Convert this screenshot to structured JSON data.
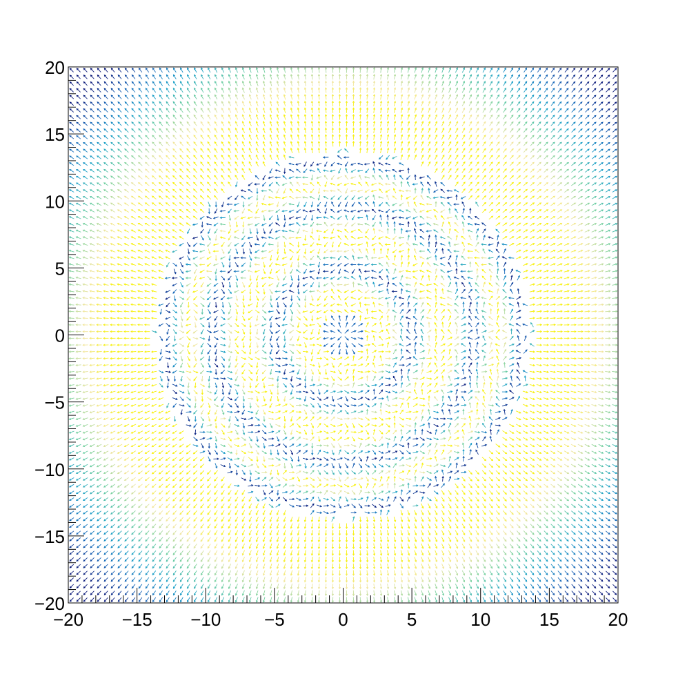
{
  "chart_data": {
    "type": "vector-field",
    "title": "",
    "xlabel": "",
    "ylabel": "",
    "xlim": [
      -20,
      20
    ],
    "ylim": [
      -20,
      20
    ],
    "x_ticks": [
      {
        "value": -20,
        "label": "−20"
      },
      {
        "value": -15,
        "label": "−15"
      },
      {
        "value": -10,
        "label": "−10"
      },
      {
        "value": -5,
        "label": "−5"
      },
      {
        "value": 0,
        "label": "0"
      },
      {
        "value": 5,
        "label": "5"
      },
      {
        "value": 10,
        "label": "10"
      },
      {
        "value": 15,
        "label": "15"
      },
      {
        "value": 20,
        "label": "20"
      }
    ],
    "y_ticks": [
      {
        "value": 20,
        "label": "20"
      },
      {
        "value": 15,
        "label": "15"
      },
      {
        "value": 10,
        "label": "10"
      },
      {
        "value": 5,
        "label": "5"
      },
      {
        "value": 0,
        "label": "0"
      },
      {
        "value": -5,
        "label": "−5"
      },
      {
        "value": -10,
        "label": "−10"
      },
      {
        "value": -15,
        "label": "−15"
      },
      {
        "value": -20,
        "label": "−20"
      }
    ],
    "grid": false,
    "legend": "none",
    "arrow_spacing": 0.5,
    "rings": [
      {
        "radius": 0,
        "note": "central source"
      },
      {
        "radius": 5
      },
      {
        "radius": 9.5
      },
      {
        "radius": 13
      }
    ],
    "colormap": [
      "#0b1a7a",
      "#1565b8",
      "#1aa0c8",
      "#6fcfa0",
      "#f2e6a0",
      "#f7f010"
    ]
  }
}
